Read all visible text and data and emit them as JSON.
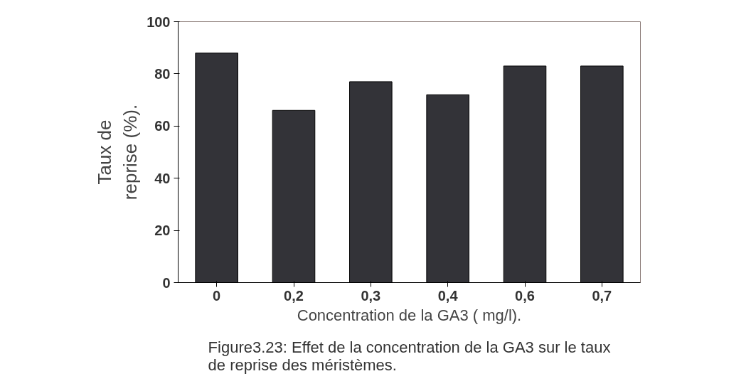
{
  "chart_data": {
    "type": "bar",
    "categories": [
      "0",
      "0,2",
      "0,3",
      "0,4",
      "0,6",
      "0,7"
    ],
    "values": [
      88,
      66,
      77,
      72,
      83,
      83
    ],
    "color": "#333338",
    "ylim": [
      0,
      100
    ],
    "yticks": [
      0,
      20,
      40,
      60,
      80,
      100
    ],
    "xlabel": "Concentration de la GA3 ( mg/l).",
    "ylabel": "Taux de\nreprise (%).",
    "annotations": [
      "Figure3.23: Effet de la concentration de la GA3 sur le taux\nde reprise des méristèmes."
    ],
    "grid": false
  }
}
